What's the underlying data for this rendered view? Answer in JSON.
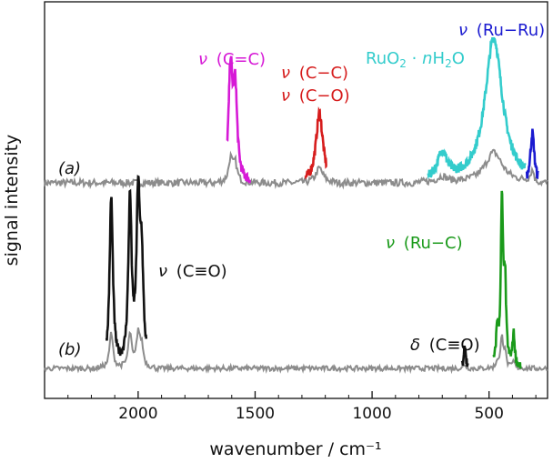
{
  "chart_data": {
    "type": "line",
    "title": "",
    "xlabel": "wavenumber  /  cm⁻¹",
    "ylabel": "signal intensity",
    "x_reversed": true,
    "xlim": [
      2400,
      250
    ],
    "x_ticks": [
      "2000",
      "1500",
      "1000",
      "500"
    ],
    "x_tick_values": [
      2000,
      1500,
      1000,
      500
    ],
    "grid": false,
    "colors": {
      "baseline": "#8c8c8c",
      "cc_double": "#d61ad6",
      "cc_co": "#d61c1c",
      "ruo2": "#33cccc",
      "ruru": "#1a1ad0",
      "co_triple": "#111111",
      "ruc": "#1a9a1a"
    },
    "traces": [
      {
        "label": "(a)",
        "offset": 1.0
      },
      {
        "label": "(b)",
        "offset": 0.0
      }
    ],
    "bands": [
      {
        "trace": "(a)",
        "assignment": "ν (C=C)",
        "x_range": [
          1620,
          1520
        ],
        "peak_x": [
          1605,
          1585
        ],
        "peak_y": [
          0.57,
          0.45
        ]
      },
      {
        "trace": "(a)",
        "assignment": "ν (C–C) / ν (C–O)",
        "x_range": [
          1285,
          1195
        ],
        "peak_x": [
          1225
        ],
        "peak_y": [
          0.36
        ]
      },
      {
        "trace": "(a)",
        "assignment": "RuO2 · nH2O",
        "x_range": [
          760,
          345
        ],
        "peak_x": [
          700,
          480
        ],
        "peak_y": [
          0.14,
          0.75
        ]
      },
      {
        "trace": "(a)",
        "assignment": "ν (Ru–Ru)",
        "x_range": [
          340,
          290
        ],
        "peak_x": [
          315
        ],
        "peak_y": [
          0.26
        ]
      },
      {
        "trace": "(b)",
        "assignment": "ν (C≡O)",
        "x_range": [
          2135,
          1965
        ],
        "peak_x": [
          2115,
          2035,
          2000,
          1985
        ],
        "peak_y": [
          0.95,
          0.92,
          0.9,
          0.55
        ]
      },
      {
        "trace": "(b)",
        "assignment": "ν (Ru–C)",
        "x_range": [
          480,
          365
        ],
        "peak_x": [
          465,
          445,
          432,
          395
        ],
        "peak_y": [
          0.2,
          0.9,
          0.45,
          0.18
        ]
      },
      {
        "trace": "(b)",
        "assignment": "δ (C≡O)",
        "x_range": [
          615,
          590
        ],
        "peak_x": [
          603
        ],
        "peak_y": [
          0.12
        ]
      }
    ],
    "labels": {
      "trace_a": "(a)",
      "trace_b": "(b)",
      "nu": "ν",
      "delta": "δ",
      "cc_double": "(C=C)",
      "cc_single": "(C−C)",
      "co_single": "(C−O)",
      "ruru": "(Ru−Ru)",
      "ruo2_base": "RuO",
      "ruo2_sub": "2",
      "ruo2_dot": " · ",
      "ruo2_n": "n",
      "ruo2_h": "H",
      "ruo2_sub2": "2",
      "ruo2_o": "O",
      "co_triple": "(C≡O)",
      "ruc": "(Ru−C)",
      "delta_co": "(C≡O)"
    }
  }
}
